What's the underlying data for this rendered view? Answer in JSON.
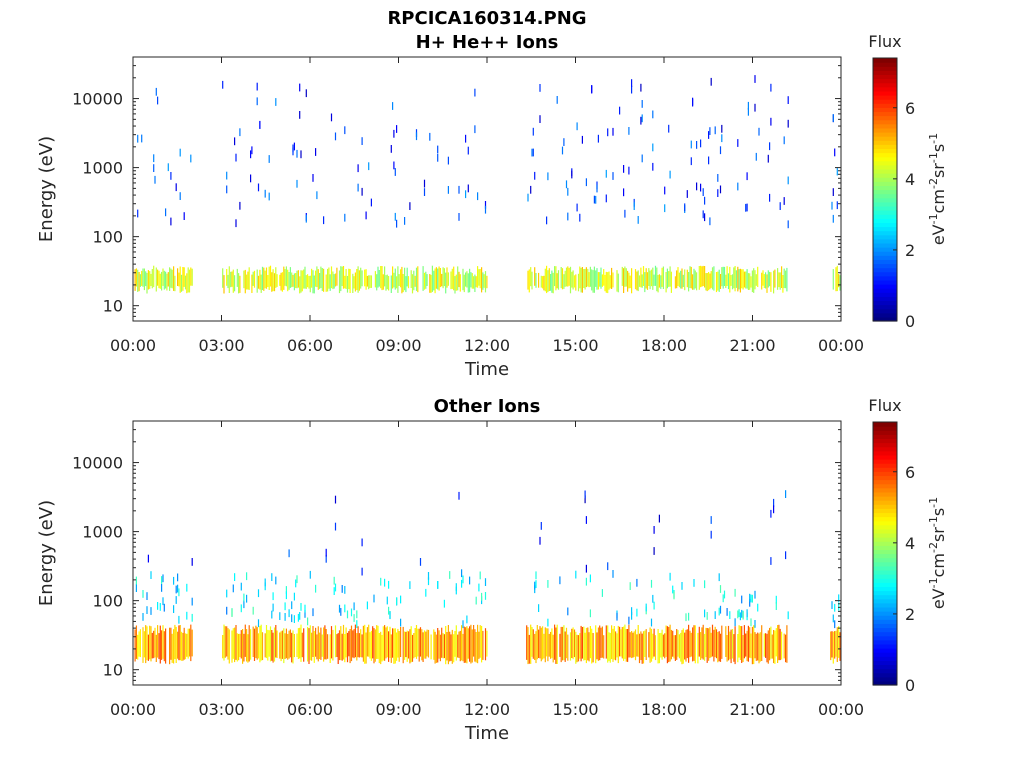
{
  "figure_title": "RPCICA160314.PNG",
  "chart_data": [
    {
      "type": "heatmap",
      "title": "H+ He++ Ions",
      "xlabel": "Time",
      "ylabel": "Energy (eV)",
      "x_tick_labels": [
        "00:00",
        "03:00",
        "06:00",
        "09:00",
        "12:00",
        "15:00",
        "18:00",
        "21:00",
        "00:00"
      ],
      "x_range_hours": [
        0,
        24
      ],
      "y_scale": "log",
      "y_range": [
        6,
        40000
      ],
      "y_tick_values": [
        10,
        100,
        1000,
        10000
      ],
      "y_tick_labels": [
        "10",
        "100",
        "1000",
        "10000"
      ],
      "colorbar": {
        "title": "Flux",
        "label": "eV-1cm-2sr-1s-1",
        "range": [
          0,
          7.4
        ],
        "ticks": [
          "0",
          "2",
          "4",
          "6"
        ],
        "colormap": "jet"
      },
      "data_gaps_hours": [
        [
          2.0,
          3.0
        ],
        [
          12.0,
          13.3
        ],
        [
          22.2,
          23.6
        ]
      ],
      "bands": [
        {
          "e_min": 15,
          "e_max": 38,
          "level": 4.3,
          "density": 0.9
        },
        {
          "e_min": 150,
          "e_max": 4000,
          "level": 1.3,
          "density": 0.25
        },
        {
          "e_min": 4000,
          "e_max": 20000,
          "level": 1.2,
          "density": 0.05
        }
      ]
    },
    {
      "type": "heatmap",
      "title": "Other Ions",
      "xlabel": "Time",
      "ylabel": "Energy (eV)",
      "x_tick_labels": [
        "00:00",
        "03:00",
        "06:00",
        "09:00",
        "12:00",
        "15:00",
        "18:00",
        "21:00",
        "00:00"
      ],
      "x_range_hours": [
        0,
        24
      ],
      "y_scale": "log",
      "y_range": [
        6,
        40000
      ],
      "y_tick_values": [
        10,
        100,
        1000,
        10000
      ],
      "y_tick_labels": [
        "10",
        "100",
        "1000",
        "10000"
      ],
      "colorbar": {
        "title": "Flux",
        "label": "eV-1cm-2sr-1s-1",
        "range": [
          0,
          7.4
        ],
        "ticks": [
          "0",
          "2",
          "4",
          "6"
        ],
        "colormap": "jet"
      },
      "data_gaps_hours": [
        [
          2.0,
          3.0
        ],
        [
          12.0,
          13.3
        ],
        [
          22.2,
          23.6
        ]
      ],
      "bands": [
        {
          "e_min": 12,
          "e_max": 45,
          "level": 5.2,
          "density": 0.95
        },
        {
          "e_min": 45,
          "e_max": 250,
          "level": 2.6,
          "density": 0.3
        },
        {
          "e_min": 250,
          "e_max": 4000,
          "level": 1.2,
          "density": 0.03
        }
      ]
    }
  ],
  "colors": {
    "axis": "#262626",
    "background": "#ffffff"
  }
}
